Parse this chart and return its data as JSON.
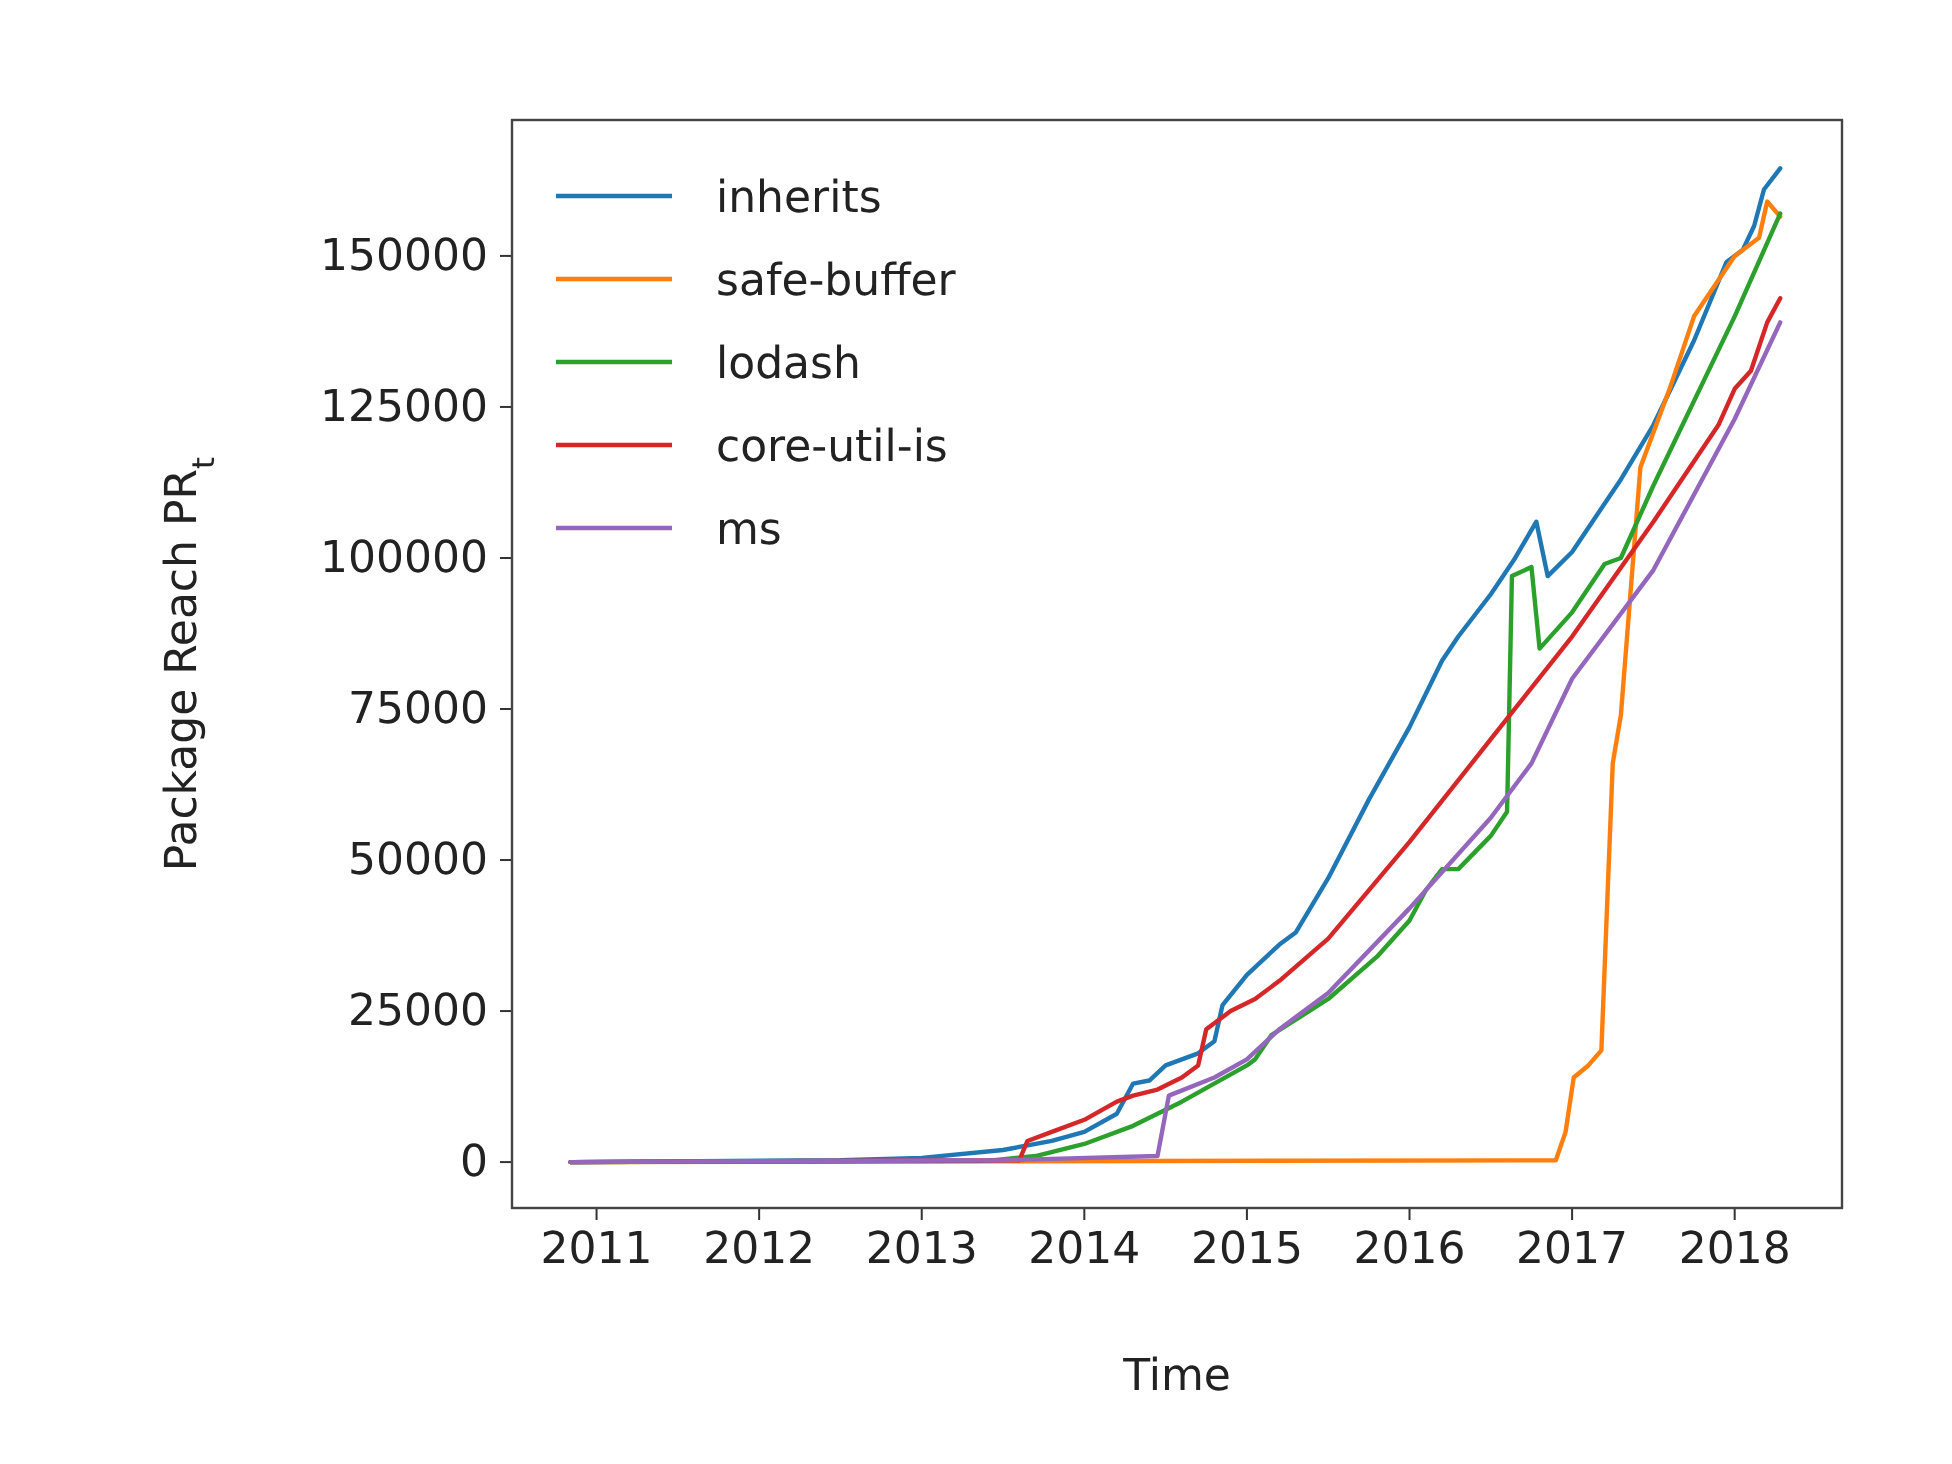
{
  "chart_data": {
    "type": "line",
    "xlabel": "Time",
    "ylabel": "Package Reach PR$_{t}$",
    "xlim": [
      2010.48,
      2018.66
    ],
    "xticks": [
      2011,
      2012,
      2013,
      2014,
      2015,
      2016,
      2017,
      2018
    ],
    "ylim": [
      -7600,
      172500
    ],
    "yticks": [
      0,
      25000,
      50000,
      75000,
      100000,
      125000,
      150000
    ],
    "grid": false,
    "legend": "top left",
    "line_style": "solid",
    "marker": "none",
    "series": [
      {
        "name": "inherits",
        "color": "#1f77b4",
        "x": [
          2010.84,
          2012.5,
          2013,
          2013.5,
          2013.8,
          2014.0,
          2014.2,
          2014.3,
          2014.4,
          2014.5,
          2014.7,
          2014.8,
          2014.85,
          2015,
          2015.2,
          2015.3,
          2015.5,
          2015.75,
          2016,
          2016.2,
          2016.3,
          2016.5,
          2016.65,
          2016.78,
          2016.85,
          2017,
          2017.3,
          2017.5,
          2017.75,
          2017.95,
          2018.05,
          2018.12,
          2018.18,
          2018.28
        ],
        "values": [
          0,
          300,
          700,
          2000,
          3500,
          5000,
          8000,
          13000,
          13500,
          16000,
          18000,
          20000,
          26000,
          31000,
          36000,
          38000,
          47000,
          60000,
          72000,
          83000,
          87000,
          94000,
          100000,
          106000,
          97000,
          101000,
          113000,
          122000,
          136000,
          149000,
          151000,
          155000,
          161000,
          164500
        ]
      },
      {
        "name": "safe-buffer",
        "color": "#ff7f0e",
        "x": [
          2010.84,
          2016.9,
          2016.96,
          2017.01,
          2017.1,
          2017.18,
          2017.25,
          2017.3,
          2017.42,
          2017.6,
          2017.75,
          2018.0,
          2018.15,
          2018.2,
          2018.28
        ],
        "values": [
          0,
          300,
          5000,
          14000,
          16000,
          18500,
          66000,
          74000,
          115000,
          128000,
          140000,
          150000,
          153000,
          159000,
          156500
        ]
      },
      {
        "name": "lodash",
        "color": "#2ca02c",
        "x": [
          2010.84,
          2013.4,
          2013.7,
          2014,
          2014.3,
          2014.6,
          2015,
          2015.05,
          2015.15,
          2015.5,
          2015.8,
          2016,
          2016.1,
          2016.2,
          2016.3,
          2016.5,
          2016.6,
          2016.63,
          2016.75,
          2016.8,
          2017,
          2017.2,
          2017.3,
          2017.5,
          2018,
          2018.28
        ],
        "values": [
          0,
          200,
          1000,
          3000,
          6000,
          10000,
          16000,
          17000,
          21000,
          27000,
          34000,
          40000,
          45000,
          48500,
          48500,
          54000,
          58000,
          97000,
          98500,
          85000,
          91000,
          99000,
          100000,
          112000,
          140000,
          157000
        ]
      },
      {
        "name": "core-util-is",
        "color": "#d62728",
        "x": [
          2010.84,
          2013.6,
          2013.65,
          2013.8,
          2014,
          2014.2,
          2014.3,
          2014.45,
          2014.6,
          2014.7,
          2014.75,
          2014.9,
          2015.05,
          2015.2,
          2015.5,
          2016,
          2016.5,
          2017,
          2017.5,
          2017.9,
          2018,
          2018.1,
          2018.2,
          2018.28
        ],
        "values": [
          0,
          300,
          3500,
          5000,
          7000,
          10000,
          11000,
          12000,
          14000,
          16000,
          22000,
          25000,
          27000,
          30000,
          37000,
          53000,
          70000,
          87000,
          106000,
          122000,
          128000,
          131000,
          139000,
          143000
        ]
      },
      {
        "name": "ms",
        "color": "#9467bd",
        "x": [
          2010.84,
          2013.5,
          2014.45,
          2014.52,
          2014.8,
          2015,
          2015.2,
          2015.5,
          2016,
          2016.5,
          2016.75,
          2017,
          2017.5,
          2018,
          2018.28
        ],
        "values": [
          0,
          300,
          1000,
          11000,
          14000,
          17000,
          22000,
          28000,
          42000,
          57000,
          66000,
          80000,
          98000,
          123000,
          139000
        ]
      }
    ]
  }
}
